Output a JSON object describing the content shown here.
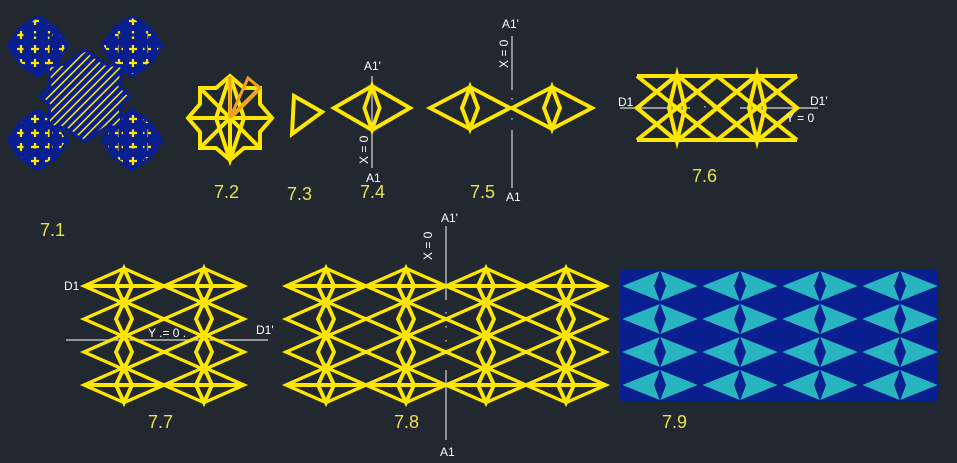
{
  "figures": [
    {
      "id": "7.1",
      "label": "7.1"
    },
    {
      "id": "7.2",
      "label": "7.2"
    },
    {
      "id": "7.3",
      "label": "7.3"
    },
    {
      "id": "7.4",
      "label": "7.4"
    },
    {
      "id": "7.5",
      "label": "7.5"
    },
    {
      "id": "7.6",
      "label": "7.6"
    },
    {
      "id": "7.7",
      "label": "7.7"
    },
    {
      "id": "7.8",
      "label": "7.8"
    },
    {
      "id": "7.9",
      "label": "7.9"
    }
  ],
  "axis_labels": {
    "a1_prime": "A1'",
    "a1": "A1",
    "x0": "X = 0",
    "d1": "D1",
    "d1_prime": "D1'",
    "y0": "Y = 0",
    "y0_dotted": "Y .= 0 ."
  },
  "colors": {
    "background": "#212830",
    "yellow_line": "#ffe600",
    "navy": "#0a1f8f",
    "teal": "#29b5c0",
    "orange": "#f0a020",
    "label": "#e9e050"
  }
}
